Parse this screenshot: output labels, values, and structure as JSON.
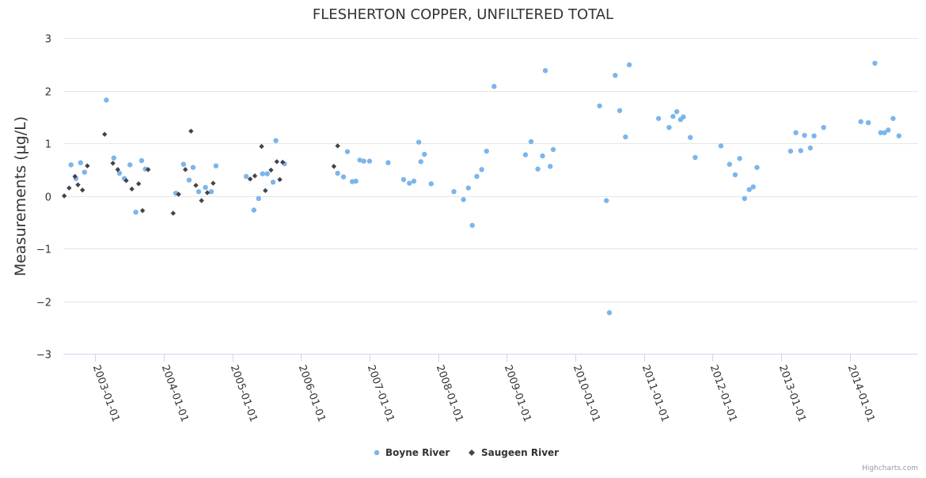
{
  "chart_data": {
    "type": "scatter",
    "title": "FLESHERTON COPPER, UNFILTERED TOTAL",
    "xlabel": "",
    "ylabel": "Measurements (µg/L)",
    "ylim": [
      -3,
      3
    ],
    "yticks": [
      -3,
      -2,
      -1,
      0,
      1,
      2,
      3
    ],
    "ytick_labels": [
      "−3",
      "−2",
      "−1",
      "0",
      "1",
      "2",
      "3"
    ],
    "xlim": [
      "2002-07-15",
      "2014-12-31"
    ],
    "xticks": [
      "2003-01-01",
      "2004-01-01",
      "2005-01-01",
      "2006-01-01",
      "2007-01-01",
      "2008-01-01",
      "2009-01-01",
      "2010-01-01",
      "2011-01-01",
      "2012-01-01",
      "2013-01-01",
      "2014-01-01"
    ],
    "legend_position": "bottom-center",
    "credits": "Highcharts.com",
    "series": [
      {
        "name": "Boyne River",
        "color": "#7cb5ec",
        "marker": "circle",
        "points": [
          [
            "2002-08-25",
            0.59
          ],
          [
            "2002-09-20",
            0.33
          ],
          [
            "2002-10-15",
            0.63
          ],
          [
            "2002-11-05",
            0.45
          ],
          [
            "2003-03-01",
            1.82
          ],
          [
            "2003-04-10",
            0.72
          ],
          [
            "2003-05-10",
            0.43
          ],
          [
            "2003-06-05",
            0.33
          ],
          [
            "2003-07-05",
            0.59
          ],
          [
            "2003-08-05",
            -0.31
          ],
          [
            "2003-09-05",
            0.67
          ],
          [
            "2003-09-25",
            0.51
          ],
          [
            "2004-03-05",
            0.05
          ],
          [
            "2004-04-15",
            0.6
          ],
          [
            "2004-05-15",
            0.3
          ],
          [
            "2004-06-05",
            0.54
          ],
          [
            "2004-07-05",
            0.08
          ],
          [
            "2004-08-10",
            0.16
          ],
          [
            "2004-09-10",
            0.08
          ],
          [
            "2004-10-05",
            0.57
          ],
          [
            "2005-03-15",
            0.37
          ],
          [
            "2005-04-25",
            -0.27
          ],
          [
            "2005-05-20",
            -0.05
          ],
          [
            "2005-06-10",
            0.42
          ],
          [
            "2005-07-05",
            0.42
          ],
          [
            "2005-08-05",
            0.26
          ],
          [
            "2005-08-20",
            1.05
          ],
          [
            "2005-10-05",
            0.61
          ],
          [
            "2006-07-15",
            0.43
          ],
          [
            "2006-08-15",
            0.36
          ],
          [
            "2006-09-05",
            0.84
          ],
          [
            "2006-10-01",
            0.27
          ],
          [
            "2006-10-20",
            0.28
          ],
          [
            "2006-11-10",
            0.68
          ],
          [
            "2006-12-01",
            0.66
          ],
          [
            "2007-01-01",
            0.66
          ],
          [
            "2007-04-10",
            0.63
          ],
          [
            "2007-07-01",
            0.31
          ],
          [
            "2007-08-01",
            0.24
          ],
          [
            "2007-08-25",
            0.28
          ],
          [
            "2007-09-20",
            1.02
          ],
          [
            "2007-10-01",
            0.65
          ],
          [
            "2007-10-20",
            0.79
          ],
          [
            "2007-11-25",
            0.23
          ],
          [
            "2008-03-25",
            0.08
          ],
          [
            "2008-05-15",
            -0.07
          ],
          [
            "2008-06-10",
            0.15
          ],
          [
            "2008-07-01",
            -0.56
          ],
          [
            "2008-07-25",
            0.37
          ],
          [
            "2008-08-20",
            0.5
          ],
          [
            "2008-09-15",
            0.85
          ],
          [
            "2008-10-25",
            2.08
          ],
          [
            "2009-04-10",
            0.78
          ],
          [
            "2009-05-10",
            1.03
          ],
          [
            "2009-06-15",
            0.51
          ],
          [
            "2009-07-10",
            0.76
          ],
          [
            "2009-07-25",
            2.38
          ],
          [
            "2009-08-20",
            0.56
          ],
          [
            "2009-09-05",
            0.88
          ],
          [
            "2010-05-10",
            1.71
          ],
          [
            "2010-06-15",
            -0.09
          ],
          [
            "2010-07-01",
            -2.22
          ],
          [
            "2010-08-01",
            2.29
          ],
          [
            "2010-08-25",
            1.62
          ],
          [
            "2010-09-25",
            1.12
          ],
          [
            "2010-10-15",
            2.49
          ],
          [
            "2011-03-20",
            1.47
          ],
          [
            "2011-05-15",
            1.3
          ],
          [
            "2011-06-05",
            1.51
          ],
          [
            "2011-06-25",
            1.6
          ],
          [
            "2011-07-15",
            1.45
          ],
          [
            "2011-07-30",
            1.5
          ],
          [
            "2011-09-05",
            1.11
          ],
          [
            "2011-10-01",
            0.73
          ],
          [
            "2012-02-15",
            0.95
          ],
          [
            "2012-04-01",
            0.6
          ],
          [
            "2012-05-01",
            0.4
          ],
          [
            "2012-05-25",
            0.71
          ],
          [
            "2012-06-20",
            -0.05
          ],
          [
            "2012-07-15",
            0.12
          ],
          [
            "2012-08-05",
            0.17
          ],
          [
            "2012-08-25",
            0.54
          ],
          [
            "2013-02-20",
            0.85
          ],
          [
            "2013-03-20",
            1.2
          ],
          [
            "2013-04-15",
            0.86
          ],
          [
            "2013-05-05",
            1.15
          ],
          [
            "2013-06-05",
            0.91
          ],
          [
            "2013-06-25",
            1.14
          ],
          [
            "2013-08-15",
            1.3
          ],
          [
            "2014-03-01",
            1.41
          ],
          [
            "2014-04-10",
            1.39
          ],
          [
            "2014-05-15",
            2.52
          ],
          [
            "2014-06-15",
            1.2
          ],
          [
            "2014-07-05",
            1.2
          ],
          [
            "2014-07-25",
            1.25
          ],
          [
            "2014-08-20",
            1.47
          ],
          [
            "2014-09-20",
            1.14
          ]
        ]
      },
      {
        "name": "Saugeen River",
        "color": "#434348",
        "marker": "diamond",
        "points": [
          [
            "2002-07-20",
            0.0
          ],
          [
            "2002-08-15",
            0.15
          ],
          [
            "2002-09-15",
            0.37
          ],
          [
            "2002-10-01",
            0.21
          ],
          [
            "2002-10-25",
            0.11
          ],
          [
            "2002-11-20",
            0.57
          ],
          [
            "2003-02-20",
            1.17
          ],
          [
            "2003-04-05",
            0.62
          ],
          [
            "2003-05-01",
            0.5
          ],
          [
            "2003-06-15",
            0.29
          ],
          [
            "2003-07-15",
            0.13
          ],
          [
            "2003-08-20",
            0.23
          ],
          [
            "2003-09-10",
            -0.28
          ],
          [
            "2003-10-10",
            0.5
          ],
          [
            "2004-02-20",
            -0.33
          ],
          [
            "2004-03-20",
            0.03
          ],
          [
            "2004-04-25",
            0.5
          ],
          [
            "2004-05-25",
            1.23
          ],
          [
            "2004-06-20",
            0.2
          ],
          [
            "2004-07-20",
            -0.09
          ],
          [
            "2004-08-20",
            0.06
          ],
          [
            "2004-09-20",
            0.24
          ],
          [
            "2005-04-05",
            0.32
          ],
          [
            "2005-04-30",
            0.38
          ],
          [
            "2005-06-05",
            0.94
          ],
          [
            "2005-06-25",
            0.1
          ],
          [
            "2005-07-25",
            0.49
          ],
          [
            "2005-08-25",
            0.65
          ],
          [
            "2005-09-10",
            0.31
          ],
          [
            "2005-09-25",
            0.64
          ],
          [
            "2006-06-25",
            0.56
          ],
          [
            "2006-07-15",
            0.95
          ]
        ]
      }
    ]
  }
}
